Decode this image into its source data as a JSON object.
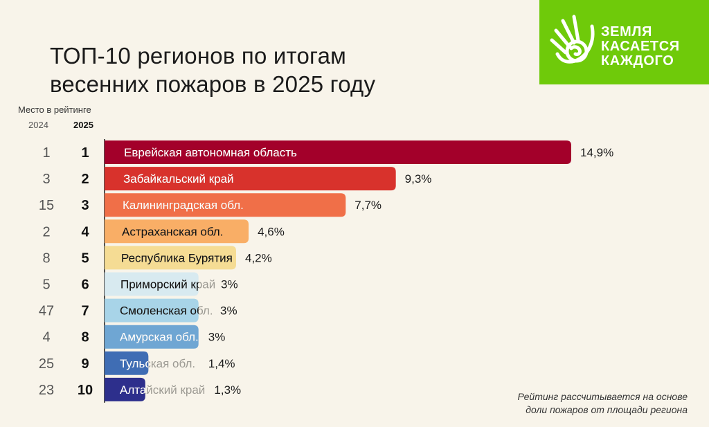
{
  "title": {
    "line1": "ТОП-10 регионов по итогам",
    "line2": "весенних пожаров в 2025 году"
  },
  "column_header": "Место в рейтинге",
  "year_prev": "2024",
  "year_curr": "2025",
  "logo": {
    "line1": "ЗЕМЛЯ",
    "line2": "КАСАЕТСЯ",
    "line3": "КАЖДОГО",
    "color": "#6fca0a"
  },
  "footnote": {
    "line1": "Рейтинг рассчитывается на основе",
    "line2": "доли пожаров от площади региона"
  },
  "chart_data": {
    "type": "bar",
    "orientation": "horizontal",
    "categories": [
      "Еврейская автономная область",
      "Забайкальский край",
      "Калининградская обл.",
      "Астраханская обл.",
      "Республика Бурятия",
      "Приморский край",
      "Смоленская обл.",
      "Амурская обл.",
      "Тульская обл.",
      "Алтайский край"
    ],
    "values": [
      14.9,
      9.3,
      7.7,
      4.6,
      4.2,
      3,
      3,
      3,
      1.4,
      1.3
    ],
    "value_labels": [
      "14,9%",
      "9,3%",
      "7,7%",
      "4,6%",
      "4,2%",
      "3%",
      "3%",
      "3%",
      "1,4%",
      "1,3%"
    ],
    "rank_2025": [
      "1",
      "2",
      "3",
      "4",
      "5",
      "6",
      "7",
      "8",
      "9",
      "10"
    ],
    "rank_2024": [
      "1",
      "3",
      "15",
      "2",
      "8",
      "5",
      "47",
      "4",
      "25",
      "23"
    ],
    "colors": [
      "#a3002a",
      "#d8322c",
      "#f06f48",
      "#f9ae66",
      "#f5dc94",
      "#d8eaf0",
      "#a8d4e8",
      "#6fa6d3",
      "#3f6db4",
      "#2d2f8c"
    ],
    "label_colors": [
      "#ffffff",
      "#ffffff",
      "#ffffff",
      "#111111",
      "#111111",
      "#111111",
      "#111111",
      "#ffffff",
      "#ffffff",
      "#ffffff"
    ],
    "xlim": [
      0,
      14.9
    ]
  }
}
